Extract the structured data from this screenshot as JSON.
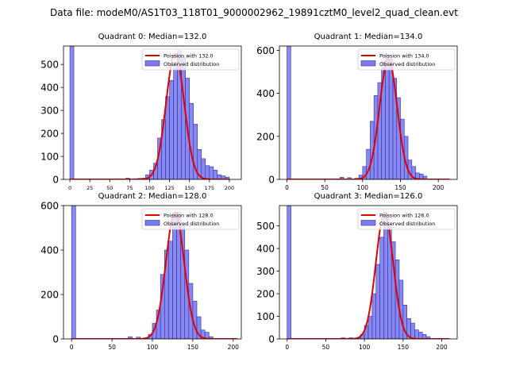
{
  "figure": {
    "suptitle": "Data file: modeM0/AS1T03_118T01_9000002962_19891cztM0_level2_quad_clean.evt"
  },
  "colors": {
    "bar_fill": "#7b7bef",
    "bar_edge": "#3030a0",
    "curve": "#e00000"
  },
  "chart_data": [
    {
      "type": "bar",
      "title": "Quadrant 0: Median=132.0",
      "median": 132.0,
      "legend": [
        "Poission with 132.0",
        "Observed distribution"
      ],
      "legend_position": "top-right",
      "xlim": [
        -8,
        215
      ],
      "ylim": [
        0,
        580
      ],
      "xticks": [
        0,
        25,
        50,
        75,
        100,
        125,
        150,
        175,
        200
      ],
      "yticks": [
        0,
        100,
        200,
        300,
        400,
        500
      ],
      "bin_width": 5,
      "bins": [
        [
          0,
          580
        ],
        [
          70,
          5
        ],
        [
          80,
          3
        ],
        [
          85,
          4
        ],
        [
          90,
          5
        ],
        [
          95,
          20
        ],
        [
          100,
          40
        ],
        [
          105,
          70
        ],
        [
          110,
          180
        ],
        [
          115,
          260
        ],
        [
          120,
          360
        ],
        [
          125,
          430
        ],
        [
          130,
          510
        ],
        [
          135,
          560
        ],
        [
          140,
          530
        ],
        [
          145,
          440
        ],
        [
          150,
          330
        ],
        [
          155,
          240
        ],
        [
          160,
          130
        ],
        [
          165,
          90
        ],
        [
          170,
          60
        ],
        [
          175,
          55
        ],
        [
          180,
          40
        ],
        [
          185,
          20
        ],
        [
          190,
          15
        ],
        [
          195,
          10
        ]
      ],
      "curve": {
        "lambda": 132,
        "peak": 545,
        "x_range": [
          0,
          200
        ]
      }
    },
    {
      "type": "bar",
      "title": "Quadrant 1: Median=134.0",
      "median": 134.0,
      "legend": [
        "Poission with 134.0",
        "Observed distribution"
      ],
      "legend_position": "top-right",
      "xlim": [
        -10,
        225
      ],
      "ylim": [
        0,
        620
      ],
      "xticks": [
        0,
        50,
        100,
        150,
        200
      ],
      "yticks": [
        0,
        200,
        400,
        600
      ],
      "bin_width": 5,
      "bins": [
        [
          0,
          620
        ],
        [
          70,
          10
        ],
        [
          80,
          8
        ],
        [
          90,
          5
        ],
        [
          95,
          20
        ],
        [
          100,
          60
        ],
        [
          105,
          140
        ],
        [
          110,
          270
        ],
        [
          115,
          390
        ],
        [
          120,
          450
        ],
        [
          125,
          550
        ],
        [
          130,
          580
        ],
        [
          135,
          560
        ],
        [
          140,
          470
        ],
        [
          145,
          380
        ],
        [
          150,
          280
        ],
        [
          155,
          200
        ],
        [
          160,
          90
        ],
        [
          165,
          60
        ],
        [
          170,
          30
        ],
        [
          175,
          25
        ],
        [
          180,
          15
        ]
      ],
      "curve": {
        "lambda": 134,
        "peak": 560,
        "x_range": [
          0,
          215
        ]
      }
    },
    {
      "type": "bar",
      "title": "Quadrant 2: Median=128.0",
      "median": 128.0,
      "legend": [
        "Poission with 128.0",
        "Observed distribution"
      ],
      "legend_position": "top-right",
      "xlim": [
        -10,
        210
      ],
      "ylim": [
        0,
        600
      ],
      "xticks": [
        0,
        50,
        100,
        150,
        200
      ],
      "yticks": [
        0,
        200,
        400,
        600
      ],
      "bin_width": 5,
      "bins": [
        [
          0,
          600
        ],
        [
          70,
          10
        ],
        [
          80,
          8
        ],
        [
          90,
          5
        ],
        [
          95,
          20
        ],
        [
          100,
          70
        ],
        [
          105,
          130
        ],
        [
          110,
          290
        ],
        [
          115,
          400
        ],
        [
          120,
          440
        ],
        [
          125,
          560
        ],
        [
          130,
          570
        ],
        [
          135,
          510
        ],
        [
          140,
          400
        ],
        [
          145,
          250
        ],
        [
          150,
          170
        ],
        [
          155,
          100
        ],
        [
          160,
          40
        ],
        [
          165,
          30
        ],
        [
          170,
          10
        ]
      ],
      "curve": {
        "lambda": 128,
        "peak": 570,
        "x_range": [
          0,
          205
        ]
      }
    },
    {
      "type": "bar",
      "title": "Quadrant 3: Median=126.0",
      "median": 126.0,
      "legend": [
        "Poission with 126.0",
        "Observed distribution"
      ],
      "legend_position": "top-right",
      "xlim": [
        -10,
        220
      ],
      "ylim": [
        0,
        590
      ],
      "xticks": [
        0,
        50,
        100,
        150,
        200
      ],
      "yticks": [
        0,
        100,
        200,
        300,
        400,
        500
      ],
      "bin_width": 5,
      "bins": [
        [
          0,
          590
        ],
        [
          70,
          5
        ],
        [
          80,
          5
        ],
        [
          90,
          5
        ],
        [
          95,
          20
        ],
        [
          100,
          60
        ],
        [
          105,
          100
        ],
        [
          110,
          200
        ],
        [
          115,
          330
        ],
        [
          120,
          450
        ],
        [
          125,
          560
        ],
        [
          130,
          500
        ],
        [
          135,
          430
        ],
        [
          140,
          350
        ],
        [
          145,
          260
        ],
        [
          150,
          150
        ],
        [
          155,
          90
        ],
        [
          160,
          70
        ],
        [
          165,
          40
        ],
        [
          170,
          30
        ],
        [
          175,
          20
        ],
        [
          180,
          10
        ]
      ],
      "curve": {
        "lambda": 126,
        "peak": 555,
        "x_range": [
          0,
          210
        ]
      }
    }
  ]
}
